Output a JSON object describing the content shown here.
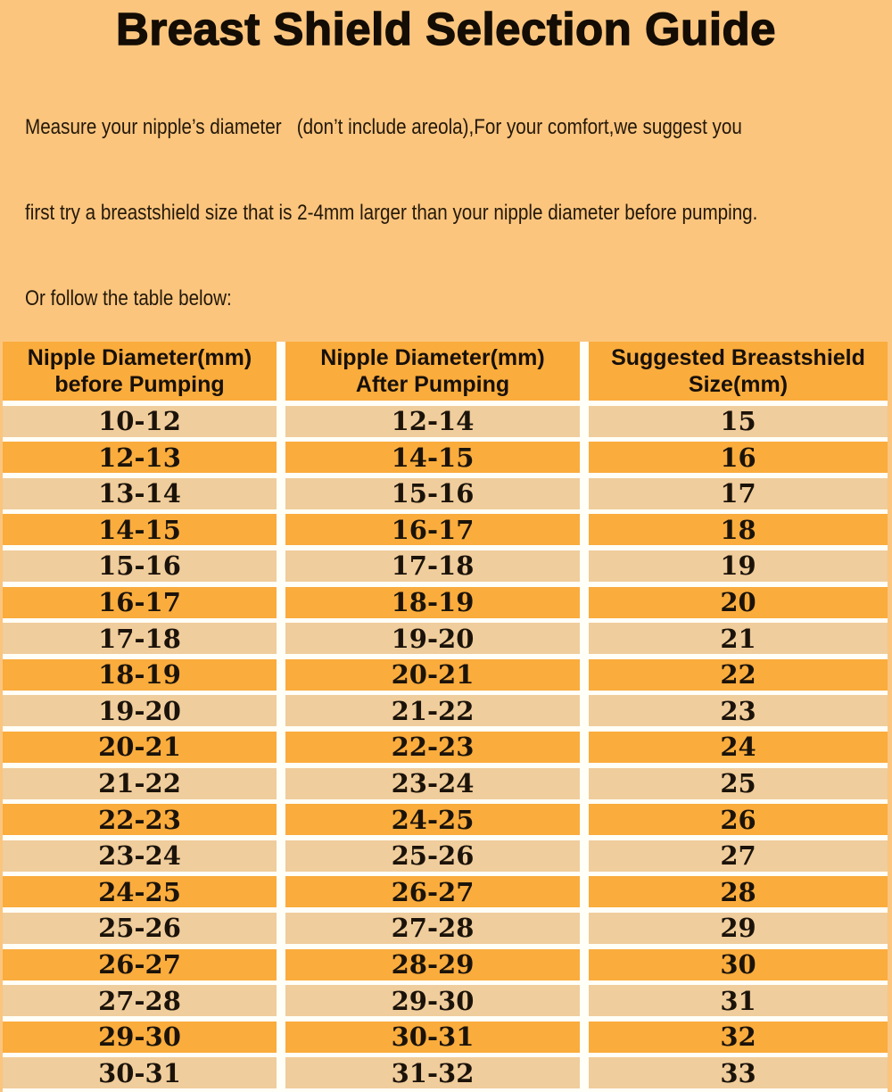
{
  "page": {
    "title": "Breast Shield Selection Guide",
    "intro_lines": [
      "Measure your nipple’s diameter   (don’t include areola),For your comfort,we suggest you",
      "first try a breastshield size that is 2-4mm larger than your nipple diameter before pumping.",
      "Or follow the table below:"
    ]
  },
  "table": {
    "headers": [
      {
        "line1": "Nipple Diameter(mm)",
        "line2": "before Pumping"
      },
      {
        "line1": "Nipple Diameter(mm)",
        "line2": "After Pumping"
      },
      {
        "line1": "Suggested Breastshield",
        "line2": "Size(mm)"
      }
    ]
  },
  "chart_data": {
    "type": "table",
    "title": "Breast Shield Selection Guide",
    "columns": [
      "Nipple Diameter(mm) before Pumping",
      "Nipple Diameter(mm) After Pumping",
      "Suggested Breastshield Size(mm)"
    ],
    "rows": [
      [
        "10-12",
        "12-14",
        "15"
      ],
      [
        "12-13",
        "14-15",
        "16"
      ],
      [
        "13-14",
        "15-16",
        "17"
      ],
      [
        "14-15",
        "16-17",
        "18"
      ],
      [
        "15-16",
        "17-18",
        "19"
      ],
      [
        "16-17",
        "18-19",
        "20"
      ],
      [
        "17-18",
        "19-20",
        "21"
      ],
      [
        "18-19",
        "20-21",
        "22"
      ],
      [
        "19-20",
        "21-22",
        "23"
      ],
      [
        "20-21",
        "22-23",
        "24"
      ],
      [
        "21-22",
        "23-24",
        "25"
      ],
      [
        "22-23",
        "24-25",
        "26"
      ],
      [
        "23-24",
        "25-26",
        "27"
      ],
      [
        "24-25",
        "26-27",
        "28"
      ],
      [
        "25-26",
        "27-28",
        "29"
      ],
      [
        "26-27",
        "28-29",
        "30"
      ],
      [
        "27-28",
        "29-30",
        "31"
      ],
      [
        "29-30",
        "30-31",
        "32"
      ],
      [
        "30-31",
        "31-32",
        "33"
      ]
    ]
  },
  "colors": {
    "background": "#FBC57E",
    "row_orange": "#FAAC3D",
    "row_tan": "#F0CD9C",
    "separator": "#FFFEF7",
    "text": "#1B130A"
  }
}
